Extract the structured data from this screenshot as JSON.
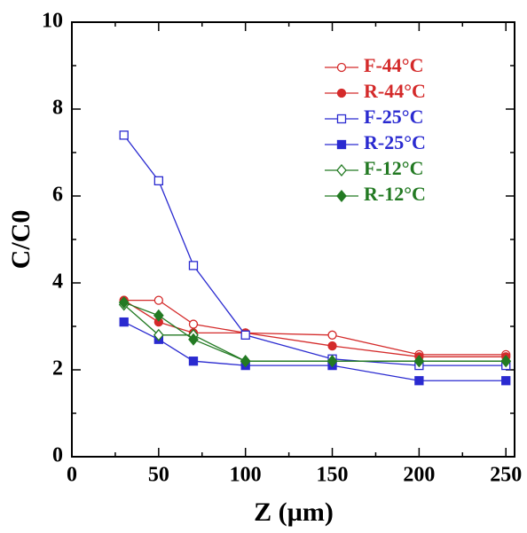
{
  "chart_data": {
    "type": "line",
    "xlabel": "Z (µm)",
    "ylabel": "C/C0",
    "x": [
      30,
      50,
      70,
      100,
      150,
      200,
      250
    ],
    "series": [
      {
        "name": "F-44°C",
        "color": "#d42a2a",
        "marker": "circle",
        "filled": false,
        "values": [
          3.6,
          3.6,
          3.05,
          2.85,
          2.8,
          2.35,
          2.35
        ]
      },
      {
        "name": "R-44°C",
        "color": "#d42a2a",
        "marker": "circle",
        "filled": true,
        "values": [
          3.6,
          3.1,
          2.85,
          2.85,
          2.55,
          2.3,
          2.3
        ]
      },
      {
        "name": "F-25°C",
        "color": "#2a2ad0",
        "marker": "square",
        "filled": false,
        "values": [
          7.4,
          6.35,
          4.4,
          2.8,
          2.25,
          2.1,
          2.1
        ]
      },
      {
        "name": "R-25°C",
        "color": "#2a2ad0",
        "marker": "square",
        "filled": true,
        "values": [
          3.1,
          2.7,
          2.2,
          2.1,
          2.1,
          1.75,
          1.75
        ]
      },
      {
        "name": "F-12°C",
        "color": "#237a23",
        "marker": "diamond",
        "filled": false,
        "values": [
          3.5,
          2.8,
          2.8,
          2.2,
          2.2,
          2.2,
          2.2
        ]
      },
      {
        "name": "R-12°C",
        "color": "#237a23",
        "marker": "diamond",
        "filled": true,
        "values": [
          3.55,
          3.25,
          2.7,
          2.2,
          2.2,
          2.2,
          2.2
        ]
      }
    ],
    "xlim": [
      0,
      255
    ],
    "xticks": [
      0,
      50,
      100,
      150,
      200,
      250
    ],
    "ylim": [
      0,
      10
    ],
    "yticks": [
      0,
      2,
      4,
      6,
      8,
      10
    ],
    "legend": "upper right"
  }
}
